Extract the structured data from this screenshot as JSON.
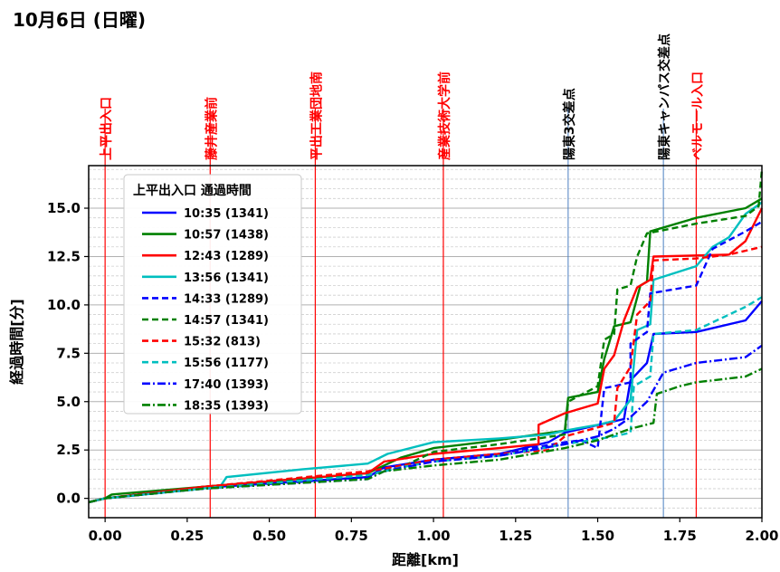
{
  "chart_data": {
    "type": "line",
    "title": "10月6日 (日曜)",
    "xlabel": "距離[km]",
    "ylabel": "経過時間[分]",
    "xlim": [
      -0.05,
      2.0
    ],
    "ylim": [
      -1.0,
      17.2
    ],
    "xticks": [
      0.0,
      0.25,
      0.5,
      0.75,
      1.0,
      1.25,
      1.5,
      1.75,
      2.0
    ],
    "xtick_labels": [
      "0.00",
      "0.25",
      "0.50",
      "0.75",
      "1.00",
      "1.25",
      "1.50",
      "1.75",
      "2.00"
    ],
    "yticks": [
      0.0,
      2.5,
      5.0,
      7.5,
      10.0,
      12.5,
      15.0
    ],
    "ytick_labels": [
      "0.0",
      "2.5",
      "5.0",
      "7.5",
      "10.0",
      "12.5",
      "15.0"
    ],
    "grid": "horizontal major and minor",
    "legend_title": "上平出入口 通過時間",
    "legend_location": "upper-left",
    "landmarks": [
      {
        "label": "上平出入口",
        "x": 0.0,
        "color": "#ff0000"
      },
      {
        "label": "藤井産業前",
        "x": 0.32,
        "color": "#ff0000"
      },
      {
        "label": "平出工業団地南",
        "x": 0.64,
        "color": "#ff0000"
      },
      {
        "label": "産業技術大学前",
        "x": 1.03,
        "color": "#ff0000"
      },
      {
        "label": "陽東3交差点",
        "x": 1.41,
        "color": "#000000"
      },
      {
        "label": "陽東キャンパス交差点",
        "x": 1.7,
        "color": "#000000"
      },
      {
        "label": "ベルモール入口",
        "x": 1.8,
        "color": "#ff0000"
      }
    ],
    "series": [
      {
        "name": "10:35 (1341)",
        "color": "#0000ff",
        "style": "solid",
        "points": [
          [
            -0.05,
            -0.2
          ],
          [
            0.0,
            0.0
          ],
          [
            0.3,
            0.55
          ],
          [
            0.8,
            1.1
          ],
          [
            0.85,
            1.6
          ],
          [
            1.0,
            2.0
          ],
          [
            1.2,
            2.3
          ],
          [
            1.35,
            2.9
          ],
          [
            1.4,
            3.4
          ],
          [
            1.58,
            4.1
          ],
          [
            1.6,
            6.1
          ],
          [
            1.65,
            7.0
          ],
          [
            1.67,
            8.5
          ],
          [
            1.8,
            8.6
          ],
          [
            1.95,
            9.2
          ],
          [
            2.0,
            10.2
          ]
        ]
      },
      {
        "name": "10:57 (1438)",
        "color": "#008000",
        "style": "solid",
        "points": [
          [
            -0.05,
            -0.2
          ],
          [
            0.0,
            0.0
          ],
          [
            0.02,
            0.2
          ],
          [
            0.3,
            0.6
          ],
          [
            0.8,
            1.3
          ],
          [
            0.9,
            2.1
          ],
          [
            1.0,
            2.6
          ],
          [
            1.15,
            2.9
          ],
          [
            1.4,
            3.5
          ],
          [
            1.41,
            5.2
          ],
          [
            1.5,
            5.5
          ],
          [
            1.52,
            7.2
          ],
          [
            1.55,
            8.9
          ],
          [
            1.6,
            9.1
          ],
          [
            1.63,
            11.0
          ],
          [
            1.65,
            11.2
          ],
          [
            1.66,
            13.8
          ],
          [
            1.8,
            14.5
          ],
          [
            1.95,
            15.0
          ],
          [
            2.0,
            15.5
          ]
        ]
      },
      {
        "name": "12:43 (1289)",
        "color": "#ff0000",
        "style": "solid",
        "points": [
          [
            -0.05,
            -0.2
          ],
          [
            0.0,
            0.0
          ],
          [
            0.3,
            0.6
          ],
          [
            0.8,
            1.3
          ],
          [
            0.85,
            1.9
          ],
          [
            1.0,
            2.3
          ],
          [
            1.2,
            2.6
          ],
          [
            1.32,
            2.8
          ],
          [
            1.32,
            3.8
          ],
          [
            1.4,
            4.4
          ],
          [
            1.5,
            4.9
          ],
          [
            1.52,
            6.7
          ],
          [
            1.55,
            7.4
          ],
          [
            1.58,
            9.2
          ],
          [
            1.62,
            10.9
          ],
          [
            1.66,
            11.3
          ],
          [
            1.67,
            12.5
          ],
          [
            1.9,
            12.6
          ],
          [
            1.95,
            13.3
          ],
          [
            2.0,
            15.0
          ]
        ]
      },
      {
        "name": "13:56 (1341)",
        "color": "#00bfbf",
        "style": "solid",
        "points": [
          [
            -0.05,
            -0.2
          ],
          [
            0.0,
            0.0
          ],
          [
            0.35,
            0.6
          ],
          [
            0.37,
            1.1
          ],
          [
            0.6,
            1.5
          ],
          [
            0.8,
            1.8
          ],
          [
            0.86,
            2.3
          ],
          [
            1.0,
            2.9
          ],
          [
            1.2,
            3.1
          ],
          [
            1.35,
            3.3
          ],
          [
            1.4,
            3.5
          ],
          [
            1.5,
            3.8
          ],
          [
            1.55,
            4.0
          ],
          [
            1.6,
            5.1
          ],
          [
            1.62,
            8.7
          ],
          [
            1.66,
            9.0
          ],
          [
            1.67,
            11.3
          ],
          [
            1.8,
            12.0
          ],
          [
            1.85,
            13.0
          ],
          [
            1.9,
            13.5
          ],
          [
            1.95,
            14.7
          ],
          [
            2.0,
            15.3
          ]
        ]
      },
      {
        "name": "14:33 (1289)",
        "color": "#0000ff",
        "style": "dashed",
        "points": [
          [
            -0.05,
            -0.2
          ],
          [
            0.0,
            0.0
          ],
          [
            0.3,
            0.5
          ],
          [
            0.8,
            1.1
          ],
          [
            0.85,
            1.5
          ],
          [
            1.0,
            2.0
          ],
          [
            1.2,
            2.3
          ],
          [
            1.4,
            2.9
          ],
          [
            1.45,
            3.0
          ],
          [
            1.5,
            2.6
          ],
          [
            1.52,
            5.7
          ],
          [
            1.55,
            5.8
          ],
          [
            1.6,
            6.0
          ],
          [
            1.6,
            8.0
          ],
          [
            1.65,
            8.6
          ],
          [
            1.66,
            10.6
          ],
          [
            1.8,
            11.0
          ],
          [
            1.85,
            12.9
          ],
          [
            1.95,
            13.8
          ],
          [
            2.0,
            14.3
          ]
        ]
      },
      {
        "name": "14:57 (1341)",
        "color": "#008000",
        "style": "dashed",
        "points": [
          [
            -0.05,
            -0.2
          ],
          [
            0.0,
            0.0
          ],
          [
            0.3,
            0.6
          ],
          [
            0.8,
            1.2
          ],
          [
            0.9,
            1.6
          ],
          [
            1.0,
            2.4
          ],
          [
            1.2,
            2.8
          ],
          [
            1.4,
            3.3
          ],
          [
            1.41,
            5.0
          ],
          [
            1.5,
            5.8
          ],
          [
            1.52,
            8.2
          ],
          [
            1.55,
            8.5
          ],
          [
            1.56,
            10.8
          ],
          [
            1.6,
            11.0
          ],
          [
            1.62,
            12.5
          ],
          [
            1.65,
            13.7
          ],
          [
            1.8,
            14.2
          ],
          [
            1.95,
            14.6
          ],
          [
            1.99,
            15.1
          ],
          [
            2.0,
            17.0
          ]
        ]
      },
      {
        "name": "15:32 (813)",
        "color": "#ff0000",
        "style": "dashed",
        "points": [
          [
            -0.05,
            -0.2
          ],
          [
            0.0,
            0.0
          ],
          [
            0.3,
            0.6
          ],
          [
            0.8,
            1.4
          ],
          [
            0.87,
            1.6
          ],
          [
            1.0,
            2.0
          ],
          [
            1.2,
            2.3
          ],
          [
            1.35,
            2.5
          ],
          [
            1.4,
            3.2
          ],
          [
            1.55,
            3.9
          ],
          [
            1.56,
            5.7
          ],
          [
            1.6,
            6.8
          ],
          [
            1.62,
            9.5
          ],
          [
            1.66,
            10.2
          ],
          [
            1.67,
            12.3
          ],
          [
            1.8,
            12.4
          ],
          [
            1.9,
            12.6
          ],
          [
            2.0,
            13.0
          ]
        ]
      },
      {
        "name": "15:56 (1177)",
        "color": "#00bfbf",
        "style": "dashed",
        "points": [
          [
            -0.05,
            -0.2
          ],
          [
            0.0,
            0.0
          ],
          [
            0.3,
            0.5
          ],
          [
            0.8,
            1.2
          ],
          [
            0.9,
            1.6
          ],
          [
            1.0,
            1.9
          ],
          [
            1.2,
            2.2
          ],
          [
            1.4,
            2.8
          ],
          [
            1.55,
            3.2
          ],
          [
            1.6,
            3.4
          ],
          [
            1.61,
            5.8
          ],
          [
            1.66,
            6.3
          ],
          [
            1.67,
            8.5
          ],
          [
            1.8,
            8.7
          ],
          [
            1.95,
            9.9
          ],
          [
            2.0,
            10.4
          ]
        ]
      },
      {
        "name": "17:40 (1393)",
        "color": "#0000ff",
        "style": "dashdot",
        "points": [
          [
            -0.05,
            -0.2
          ],
          [
            0.0,
            0.0
          ],
          [
            0.3,
            0.5
          ],
          [
            0.8,
            1.0
          ],
          [
            0.85,
            1.4
          ],
          [
            1.0,
            1.9
          ],
          [
            1.2,
            2.2
          ],
          [
            1.4,
            2.8
          ],
          [
            1.5,
            3.2
          ],
          [
            1.55,
            3.6
          ],
          [
            1.6,
            4.2
          ],
          [
            1.65,
            5.0
          ],
          [
            1.7,
            6.5
          ],
          [
            1.8,
            7.0
          ],
          [
            1.95,
            7.3
          ],
          [
            2.0,
            7.9
          ]
        ]
      },
      {
        "name": "18:35 (1393)",
        "color": "#008000",
        "style": "dashdot",
        "points": [
          [
            -0.05,
            -0.2
          ],
          [
            0.0,
            0.0
          ],
          [
            0.3,
            0.5
          ],
          [
            0.8,
            1.0
          ],
          [
            0.85,
            1.4
          ],
          [
            1.0,
            1.7
          ],
          [
            1.2,
            2.0
          ],
          [
            1.4,
            2.6
          ],
          [
            1.5,
            3.0
          ],
          [
            1.55,
            3.3
          ],
          [
            1.6,
            3.6
          ],
          [
            1.67,
            3.9
          ],
          [
            1.68,
            5.4
          ],
          [
            1.75,
            5.8
          ],
          [
            1.8,
            6.0
          ],
          [
            1.95,
            6.3
          ],
          [
            2.0,
            6.7
          ]
        ]
      }
    ]
  }
}
